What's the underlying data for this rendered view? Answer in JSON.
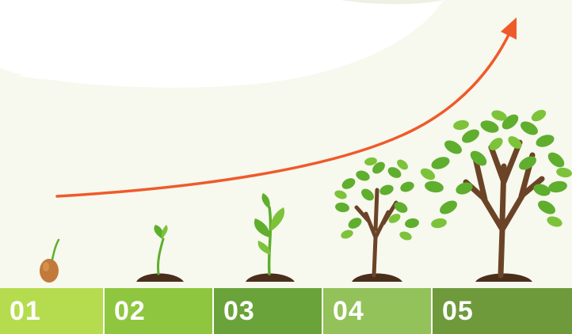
{
  "colors": {
    "background": "#f7f8ee",
    "cloud": "#ffffff",
    "arrow": "#ef5a2b",
    "leaf": "#5fae2e",
    "leaf_light": "#7cc33a",
    "trunk": "#6b4326",
    "soil": "#4a2e1c",
    "seed": "#c27a3a"
  },
  "stages": [
    {
      "label": "01",
      "color": "#b5dc4f"
    },
    {
      "label": "02",
      "color": "#8ec63f"
    },
    {
      "label": "03",
      "color": "#6aa33a"
    },
    {
      "label": "04",
      "color": "#93c25a"
    },
    {
      "label": "05",
      "color": "#6f9a3c"
    }
  ],
  "icons": [
    "seed-icon",
    "sprout-icon",
    "seedling-icon",
    "young-tree-icon",
    "grown-tree-icon",
    "growth-arrow-icon"
  ]
}
